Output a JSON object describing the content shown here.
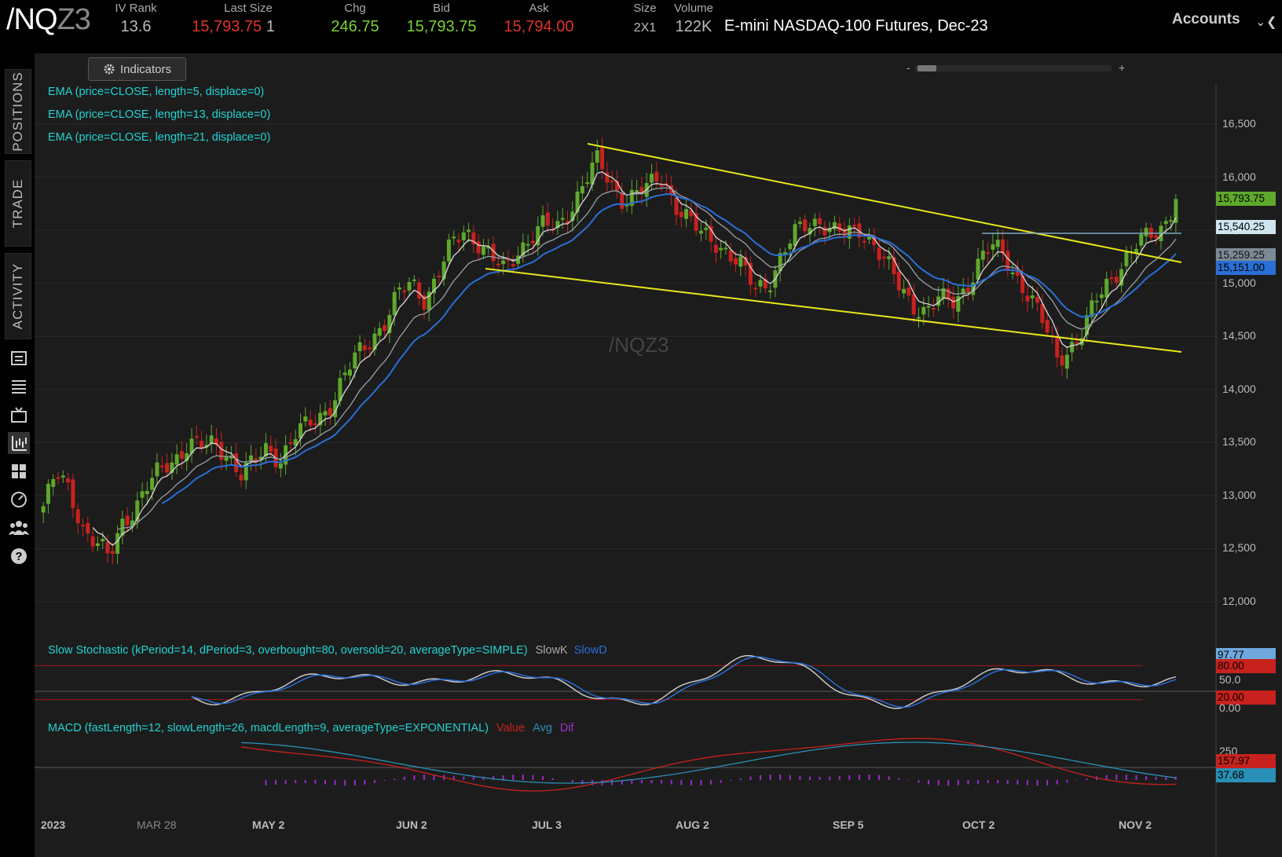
{
  "header": {
    "symbol": "/NQ",
    "symbol_suffix": "Z3",
    "iv_rank_label": "IV Rank",
    "iv_rank": "13.6",
    "last_size_label": "Last Size",
    "last": "15,793.75",
    "last_size": "1",
    "chg_label": "Chg",
    "chg": "246.75",
    "bid_label": "Bid",
    "bid": "15,793.75",
    "ask_label": "Ask",
    "ask": "15,794.00",
    "size_label": "Size",
    "size": "2X1",
    "volume_label": "Volume",
    "volume": "122K",
    "product": "E-mini NASDAQ-100 Futures, Dec-23",
    "accounts_label": "Accounts"
  },
  "sidebar": {
    "tabs": [
      "POSITIONS",
      "TRADE",
      "ACTIVITY"
    ],
    "icons": [
      "watchlist-icon",
      "list-icon",
      "tv-icon",
      "chart-icon",
      "grid-icon",
      "dashboard-icon",
      "community-icon",
      "help-icon"
    ]
  },
  "chart": {
    "indicators_button": "Indicators",
    "watermark": "/NQZ3",
    "ema_labels": [
      "EMA (price=CLOSE, length=5, displace=0)",
      "EMA (price=CLOSE, length=13, displace=0)",
      "EMA (price=CLOSE, length=21, displace=0)"
    ],
    "stoch_label": "Slow Stochastic (kPeriod=14, dPeriod=3, overbought=80, oversold=20, averageType=SIMPLE)",
    "stoch_slowk": "SlowK",
    "stoch_slowd": "SlowD",
    "macd_label": "MACD (fastLength=12, slowLength=26, macdLength=9, averageType=EXPONENTIAL)",
    "macd_value": "Value",
    "macd_avg": "Avg",
    "macd_dif": "Dif",
    "price_tags": {
      "last": "15,793.75",
      "resistance": "15,540.25",
      "ema13": "15,259.25",
      "ema21": "15,151.00"
    },
    "stoch_tags": {
      "slowk": "97.77",
      "overbought": "80.00",
      "mid": "50.0",
      "oversold": "20.00",
      "zero": "0.00"
    },
    "macd_tags": {
      "level": "250",
      "value": "157.97",
      "avg": "37.68"
    },
    "colors": {
      "up": "#5fa82b",
      "down": "#c8221e",
      "trendline": "#e8e81a",
      "ema5": "#d8d8d8",
      "ema13": "#9aa0a8",
      "ema21": "#2a6fd6"
    }
  },
  "chart_data": {
    "type": "candlestick",
    "title": "/NQZ3",
    "y_ticks": [
      "16,500",
      "16,000",
      "15,500",
      "15,000",
      "14,500",
      "14,000",
      "13,500",
      "13,000",
      "12,500",
      "12,000"
    ],
    "ylim": [
      11700,
      16900
    ],
    "x_ticks": [
      "2023",
      "MAR 28",
      "MAY 2",
      "JUN 2",
      "JUL 3",
      "AUG 2",
      "SEP 5",
      "OCT 2",
      "NOV 2"
    ],
    "close_path": [
      12900,
      13200,
      13050,
      12700,
      12550,
      12400,
      12750,
      12900,
      13100,
      13250,
      13350,
      13500,
      13450,
      13480,
      13400,
      13200,
      13300,
      13450,
      13350,
      13550,
      13650,
      13750,
      13900,
      14150,
      14350,
      14500,
      14650,
      14900,
      15000,
      14850,
      15100,
      15350,
      15500,
      15400,
      15250,
      15100,
      15300,
      15450,
      15550,
      15500,
      15700,
      15950,
      16150,
      15950,
      15800,
      15850,
      15900,
      16000,
      15750,
      15600,
      15450,
      15400,
      15300,
      15150,
      14950,
      15000,
      15250,
      15450,
      15550,
      15600,
      15500,
      15450,
      15500,
      15400,
      15200,
      14950,
      14800,
      14750,
      14850,
      14800,
      14950,
      15200,
      15350,
      15250,
      15050,
      14850,
      14600,
      14300,
      14400,
      14550,
      14850,
      15050,
      15200,
      15350,
      15450,
      15540,
      15794
    ],
    "trendlines": [
      {
        "name": "upper-trendline",
        "from": [
          "JUL",
          16250
        ],
        "to": [
          "NOV",
          15080
        ]
      },
      {
        "name": "lower-trendline",
        "from": [
          "JUN",
          15030
        ],
        "to": [
          "NOV",
          14330
        ]
      },
      {
        "name": "resistance-line",
        "value": 15540
      }
    ]
  }
}
